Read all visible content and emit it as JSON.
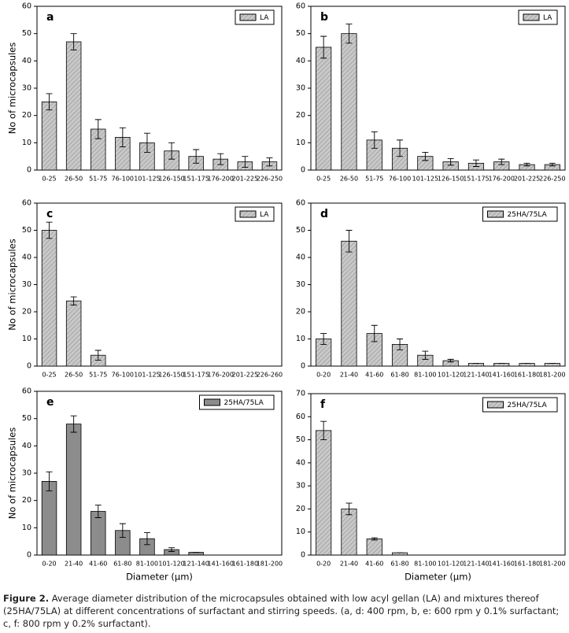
{
  "chart_data": [
    {
      "type": "bar",
      "panel": "a",
      "legend": "LA",
      "y_label": "No of microcapsules",
      "color": "#b4b4b4",
      "categories": [
        "0-25",
        "26-50",
        "51-75",
        "76-100",
        "101-125",
        "126-150",
        "151-175",
        "176-200",
        "201-225",
        "226-250"
      ],
      "values": [
        25,
        47,
        15,
        12,
        10,
        7,
        5,
        4,
        3,
        3
      ],
      "errors": [
        3,
        3,
        3.5,
        3.5,
        3.5,
        3,
        2.5,
        2,
        2,
        1.5
      ],
      "ylim": [
        0,
        60
      ],
      "yticks": [
        0,
        10,
        20,
        30,
        40,
        50,
        60
      ]
    },
    {
      "type": "bar",
      "panel": "b",
      "legend": "LA",
      "color": "#b4b4b4",
      "categories": [
        "0-25",
        "26-50",
        "51-75",
        "76-100",
        "101-125",
        "126-150",
        "151-175",
        "176-200",
        "201-225",
        "226-250"
      ],
      "values": [
        45,
        50,
        11,
        8,
        5,
        3,
        2.5,
        3,
        2,
        2
      ],
      "errors": [
        4,
        3.5,
        3,
        3,
        1.5,
        1.2,
        1.2,
        1,
        0.5,
        0.5
      ],
      "ylim": [
        0,
        60
      ],
      "yticks": [
        0,
        10,
        20,
        30,
        40,
        50,
        60
      ]
    },
    {
      "type": "bar",
      "panel": "c",
      "legend": "LA",
      "y_label": "No of microcapsules",
      "color": "#b4b4b4",
      "categories": [
        "0-25",
        "26-50",
        "51-75",
        "76-100",
        "101-125",
        "126-150",
        "151-175",
        "176-200",
        "201-225",
        "226-260"
      ],
      "values": [
        50,
        24,
        4,
        0,
        0,
        0,
        0,
        0,
        0,
        0
      ],
      "errors": [
        3,
        1.5,
        1.8,
        0,
        0,
        0,
        0,
        0,
        0,
        0
      ],
      "ylim": [
        0,
        60
      ],
      "yticks": [
        0,
        10,
        20,
        30,
        40,
        50,
        60
      ]
    },
    {
      "type": "bar",
      "panel": "d",
      "legend": "25HA/75LA",
      "color": "#b4b4b4",
      "categories": [
        "0-20",
        "21-40",
        "41-60",
        "61-80",
        "81-100",
        "101-120",
        "121-140",
        "141-160",
        "161-180",
        "181-200"
      ],
      "values": [
        10,
        46,
        12,
        8,
        4,
        2,
        1,
        1,
        1,
        1
      ],
      "errors": [
        2,
        4,
        3,
        2,
        1.5,
        0.5,
        0,
        0,
        0,
        0
      ],
      "ylim": [
        0,
        60
      ],
      "yticks": [
        0,
        10,
        20,
        30,
        40,
        50,
        60
      ]
    },
    {
      "type": "bar",
      "panel": "e",
      "legend": "25HA/75LA",
      "y_label": "No of microcapsules",
      "x_label": "Diameter (μm)",
      "color": "#8c8c8c",
      "categories": [
        "0-20",
        "21-40",
        "41-60",
        "61-80",
        "81-100",
        "101-120",
        "121-140",
        "141-160",
        "161-180",
        "181-200"
      ],
      "values": [
        27,
        48,
        16,
        9,
        6,
        2,
        1,
        0,
        0,
        0
      ],
      "errors": [
        3.5,
        3,
        2.3,
        2.5,
        2.2,
        0.7,
        0,
        0,
        0,
        0
      ],
      "ylim": [
        0,
        60
      ],
      "yticks": [
        0,
        10,
        20,
        30,
        40,
        50,
        60
      ]
    },
    {
      "type": "bar",
      "panel": "f",
      "legend": "25HA/75LA",
      "x_label": "Diameter (μm)",
      "color": "#b4b4b4",
      "categories": [
        "0-20",
        "21-40",
        "41-60",
        "61-80",
        "81-100",
        "101-120",
        "121-140",
        "141-160",
        "161-180",
        "181-200"
      ],
      "values": [
        54,
        20,
        7,
        1,
        0,
        0,
        0,
        0,
        0,
        0
      ],
      "errors": [
        4,
        2.5,
        0.5,
        0,
        0,
        0,
        0,
        0,
        0,
        0
      ],
      "ylim": [
        0,
        70
      ],
      "yticks": [
        0,
        10,
        20,
        30,
        40,
        50,
        60,
        70
      ]
    }
  ],
  "caption": {
    "label": "Figure 2.",
    "text": "Average diameter distribution of the microcapsules obtained with low acyl gellan (LA) and mixtures thereof (25HA/75LA) at different concentrations of surfactant and stirring speeds. (a, d: 400 rpm, b, e: 600 rpm y 0.1% surfactant; c, f: 800 rpm y 0.2% surfactant)."
  }
}
